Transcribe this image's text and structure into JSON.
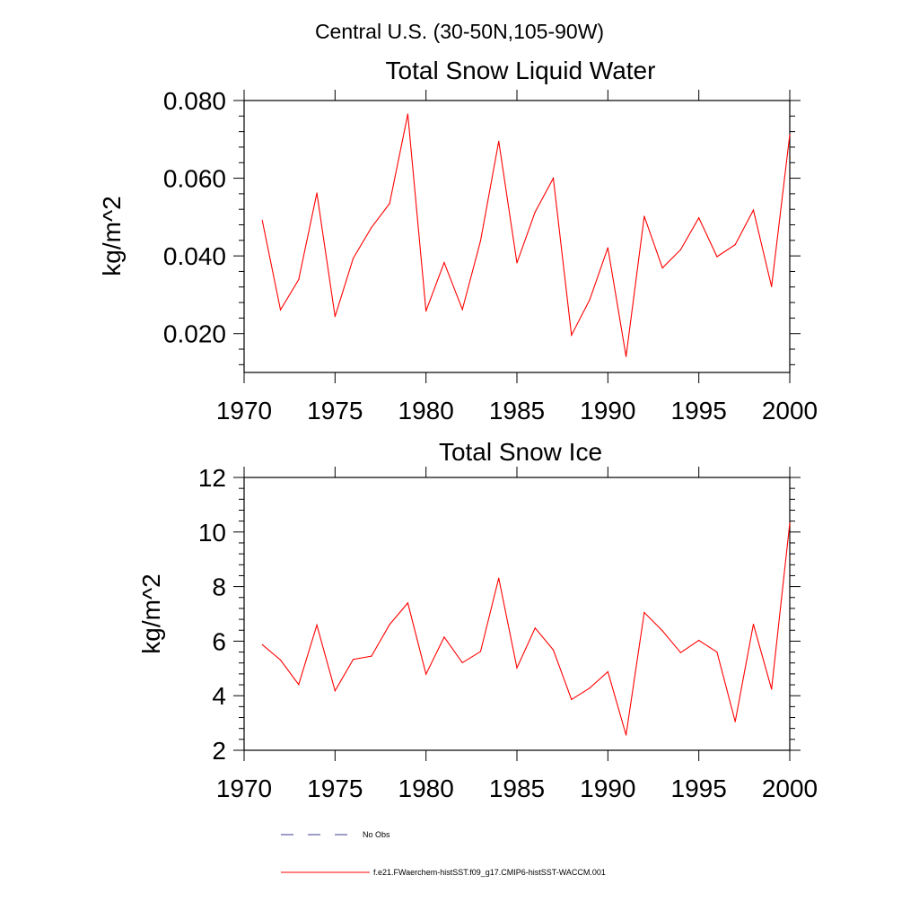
{
  "suptitle": "Central U.S. (30-50N,105-90W)",
  "legend": {
    "items": [
      {
        "label": "No Obs",
        "color": "#3b3b8f",
        "dash": "dashed"
      },
      {
        "label": "f.e21.FWaerchem-histSST.f09_g17.CMIP6-histSST-WACCM.001",
        "color": "#ff0000",
        "dash": "solid"
      }
    ]
  },
  "chart_data": [
    {
      "type": "line",
      "title": "Total Snow Liquid Water",
      "xlabel": "",
      "ylabel": "kg/m^2",
      "xlim": [
        1970,
        2000
      ],
      "ylim": [
        0.01,
        0.08
      ],
      "xticks": [
        1970,
        1975,
        1980,
        1985,
        1990,
        1995,
        2000
      ],
      "xtick_labels": [
        "1970",
        "1975",
        "1980",
        "1985",
        "1990",
        "1995",
        "2000"
      ],
      "yticks": [
        0.02,
        0.04,
        0.06,
        0.08
      ],
      "ytick_labels": [
        "0.020",
        "0.040",
        "0.060",
        "0.080"
      ],
      "grid": false,
      "x": [
        1971,
        1972,
        1973,
        1974,
        1975,
        1976,
        1977,
        1978,
        1979,
        1980,
        1981,
        1982,
        1983,
        1984,
        1985,
        1986,
        1987,
        1988,
        1989,
        1990,
        1991,
        1992,
        1993,
        1994,
        1995,
        1996,
        1997,
        1998,
        1999,
        2000
      ],
      "series": [
        {
          "color": "#ff0000",
          "values": [
            0.0491,
            0.0261,
            0.0339,
            0.0562,
            0.0244,
            0.0394,
            0.0473,
            0.0535,
            0.0765,
            0.0258,
            0.0383,
            0.0262,
            0.0439,
            0.0695,
            0.0382,
            0.0513,
            0.06,
            0.0196,
            0.0287,
            0.0421,
            0.0141,
            0.0502,
            0.0369,
            0.0416,
            0.0498,
            0.0398,
            0.0429,
            0.0518,
            0.0321,
            0.0712
          ]
        }
      ]
    },
    {
      "type": "line",
      "title": "Total Snow Ice",
      "xlabel": "",
      "ylabel": "kg/m^2",
      "xlim": [
        1970,
        2000
      ],
      "ylim": [
        2,
        12
      ],
      "xticks": [
        1970,
        1975,
        1980,
        1985,
        1990,
        1995,
        2000
      ],
      "xtick_labels": [
        "1970",
        "1975",
        "1980",
        "1985",
        "1990",
        "1995",
        "2000"
      ],
      "yticks": [
        2,
        4,
        6,
        8,
        10,
        12
      ],
      "ytick_labels": [
        "2",
        "4",
        "6",
        "8",
        "10",
        "12"
      ],
      "grid": false,
      "x": [
        1971,
        1972,
        1973,
        1974,
        1975,
        1976,
        1977,
        1978,
        1979,
        1980,
        1981,
        1982,
        1983,
        1984,
        1985,
        1986,
        1987,
        1988,
        1989,
        1990,
        1991,
        1992,
        1993,
        1994,
        1995,
        1996,
        1997,
        1998,
        1999,
        2000
      ],
      "series": [
        {
          "color": "#ff0000",
          "values": [
            5.87,
            5.31,
            4.41,
            6.59,
            4.18,
            5.33,
            5.45,
            6.61,
            7.4,
            4.79,
            6.15,
            5.21,
            5.62,
            8.31,
            5.02,
            6.48,
            5.68,
            3.86,
            4.28,
            4.88,
            2.56,
            7.05,
            6.38,
            5.58,
            6.03,
            5.6,
            3.05,
            6.62,
            4.24,
            10.33
          ]
        }
      ]
    }
  ]
}
